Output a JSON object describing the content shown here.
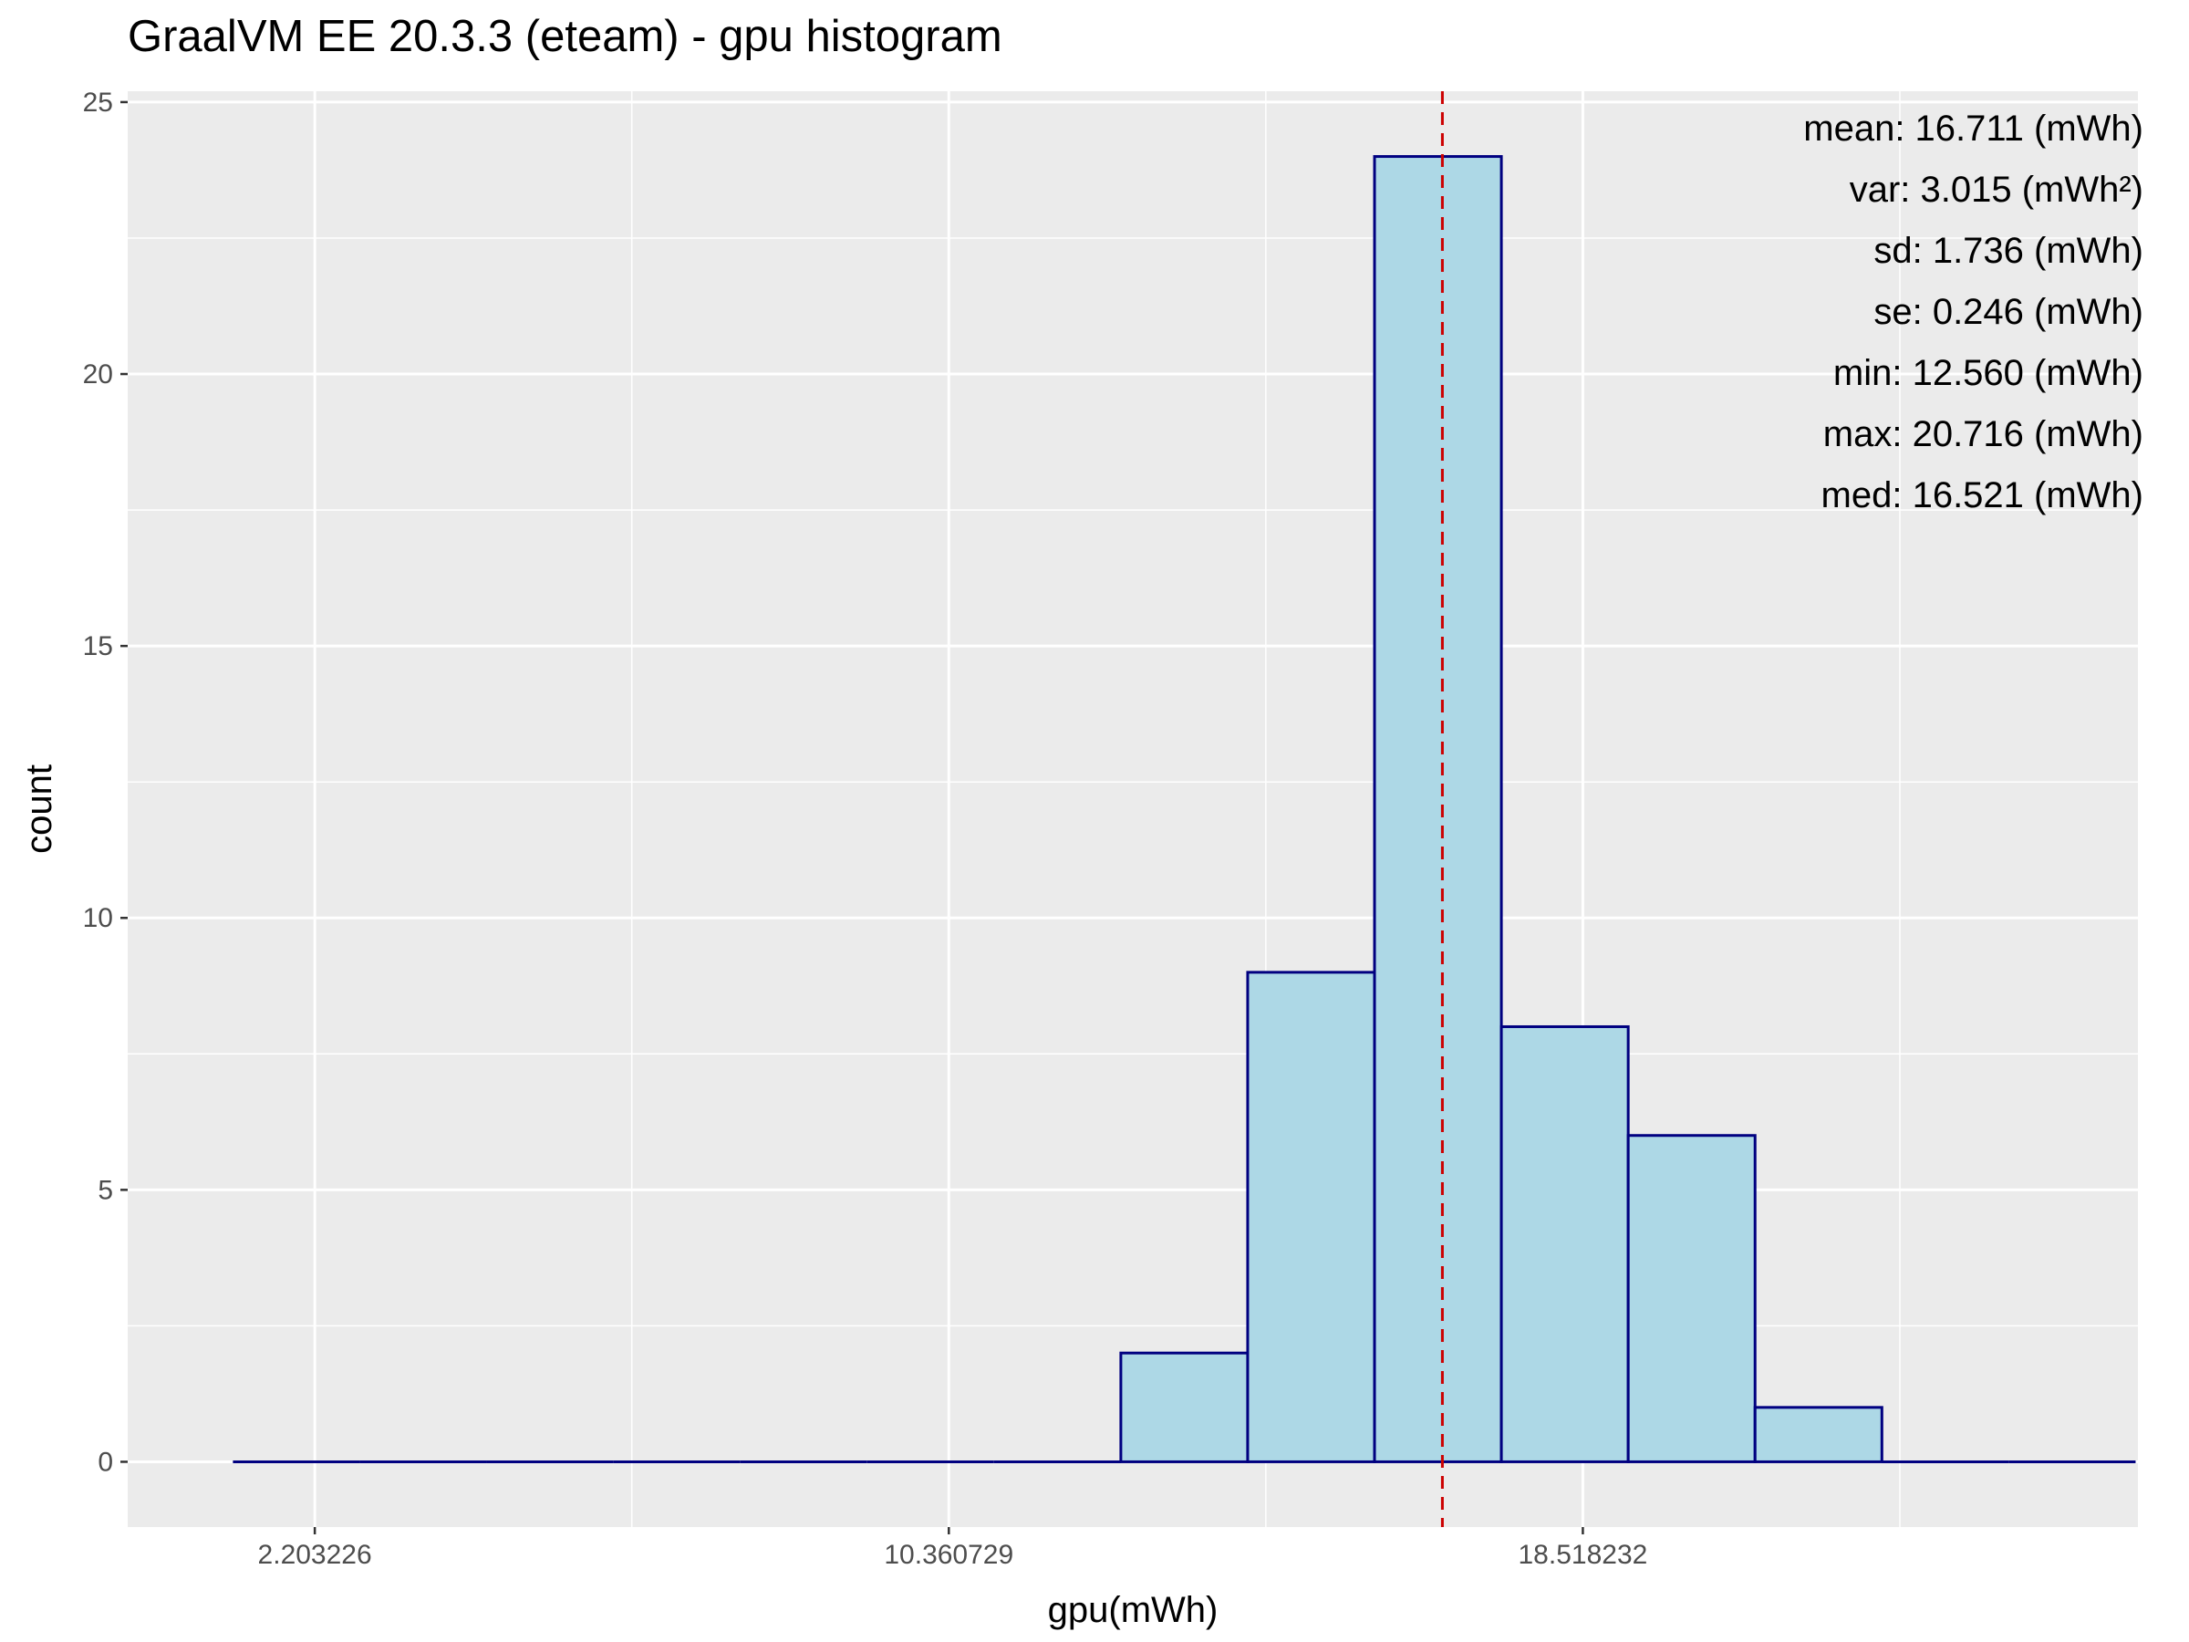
{
  "title": "GraalVM EE 20.3.3 (eteam) - gpu histogram",
  "chart_data": {
    "type": "bar",
    "title": "GraalVM EE 20.3.3 (eteam) - gpu histogram",
    "xlabel": "gpu(mWh)",
    "ylabel": "count",
    "xlim": [
      -0.204,
      25.66
    ],
    "ylim": [
      -1.2,
      25.2
    ],
    "x_ticks": [
      2.203226,
      10.360729,
      18.518232
    ],
    "x_tick_labels": [
      "2.203226",
      "10.360729",
      "18.518232"
    ],
    "y_ticks": [
      0,
      5,
      10,
      15,
      20,
      25
    ],
    "bin_width": 1.632,
    "bins": [
      {
        "start": 1.15,
        "count": 0
      },
      {
        "start": 2.782,
        "count": 0
      },
      {
        "start": 4.414,
        "count": 0
      },
      {
        "start": 6.046,
        "count": 0
      },
      {
        "start": 7.678,
        "count": 0
      },
      {
        "start": 9.31,
        "count": 0
      },
      {
        "start": 10.942,
        "count": 0
      },
      {
        "start": 12.574,
        "count": 2
      },
      {
        "start": 14.206,
        "count": 9
      },
      {
        "start": 15.838,
        "count": 24
      },
      {
        "start": 17.47,
        "count": 8
      },
      {
        "start": 19.102,
        "count": 6
      },
      {
        "start": 20.734,
        "count": 1
      },
      {
        "start": 22.366,
        "count": 0
      },
      {
        "start": 23.998,
        "count": 0
      }
    ],
    "mean_line": 16.711,
    "grid": true,
    "colors": {
      "panel_bg": "#ebebeb",
      "grid": "#ffffff",
      "bar_fill": "#add8e6",
      "bar_stroke": "#000080",
      "mean_line": "#cc0000"
    },
    "stats": [
      "mean: 16.711 (mWh)",
      "var: 3.015 (mWh²)",
      "sd: 1.736 (mWh)",
      "se: 0.246 (mWh)",
      "min: 12.560 (mWh)",
      "max: 20.716 (mWh)",
      "med: 16.521 (mWh)"
    ]
  }
}
